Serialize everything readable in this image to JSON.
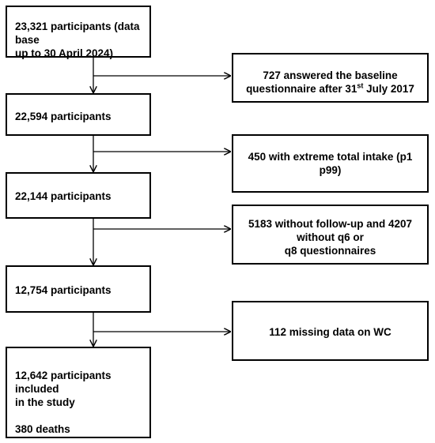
{
  "main_boxes": {
    "b1": {
      "line1": "23,321 participants (data base",
      "line2": "up to 30 April 2024)"
    },
    "b2": {
      "text": "22,594 participants"
    },
    "b3": {
      "text": "22,144 participants"
    },
    "b4": {
      "text": "12,754 participants"
    },
    "b5": {
      "line1": "12,642 participants included",
      "line2": "in the study",
      "line3": "380 deaths"
    }
  },
  "exclusion_boxes": {
    "e1": {
      "line1": "727 answered the baseline",
      "line2_pre": "questionnaire after 31",
      "line2_sup": "st",
      "line2_post": " July 2017"
    },
    "e2": {
      "line1": "450 with extreme total intake (p1",
      "line2": "p99)"
    },
    "e3": {
      "line1": "5183 without follow-up and 4207",
      "line2": "without q6 or",
      "line3": "q8 questionnaires"
    },
    "e4": {
      "text": "112 missing data on WC"
    }
  }
}
